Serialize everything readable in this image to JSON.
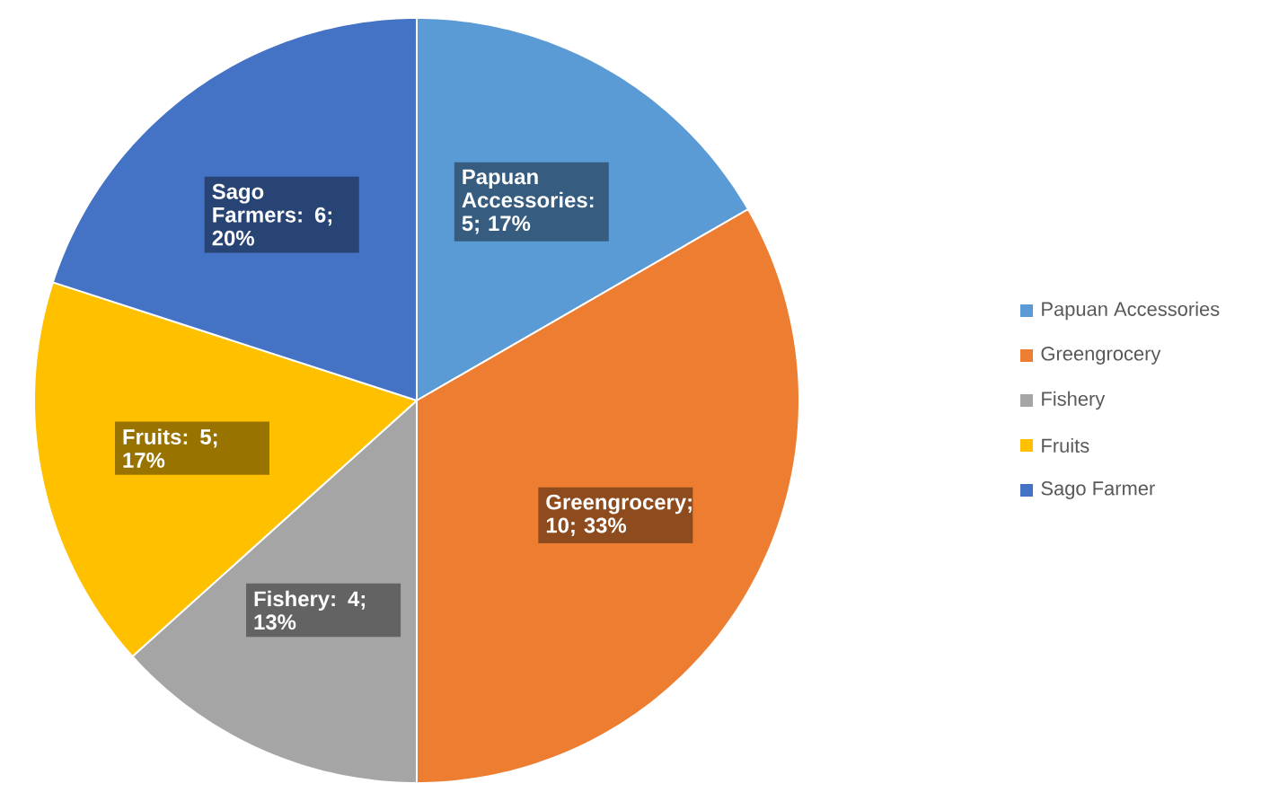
{
  "chart_data": {
    "type": "pie",
    "categories": [
      "Papuan Accessories",
      "Greengrocery",
      "Fishery",
      "Fruits",
      "Sago Farmer"
    ],
    "values": [
      5,
      10,
      4,
      5,
      6
    ],
    "colors": [
      "#5b9bd5",
      "#ed7d31",
      "#a5a5a5",
      "#ffc000",
      "#4472c4"
    ],
    "value_labels": [
      "Papuan Accessories: 5; 17%",
      "Greengrocery; 10; 33%",
      "Fishery: 4; 13%",
      "Fruits: 5; 17%",
      "Sago Farmers: 6; 20%"
    ],
    "legend": "right"
  }
}
